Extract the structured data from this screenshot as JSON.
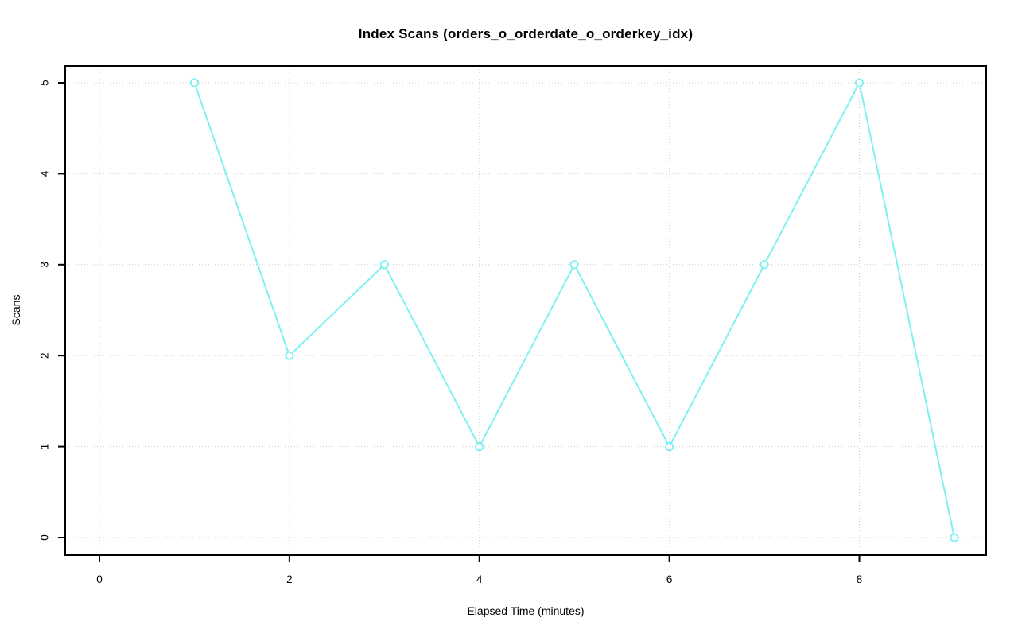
{
  "chart_data": {
    "type": "line",
    "title": "Index Scans (orders_o_orderdate_o_orderkey_idx)",
    "xlabel": "Elapsed Time (minutes)",
    "ylabel": "Scans",
    "series": [
      {
        "name": "Index Scans",
        "x": [
          1,
          2,
          3,
          4,
          5,
          6,
          7,
          8,
          9
        ],
        "y": [
          5,
          2,
          3,
          1,
          3,
          1,
          3,
          5,
          0
        ]
      }
    ],
    "xticks": [
      0,
      2,
      4,
      6,
      8
    ],
    "yticks": [
      0,
      1,
      2,
      3,
      4,
      5
    ],
    "xlim": [
      0,
      9
    ],
    "ylim": [
      0,
      5
    ],
    "grid": true,
    "grid_style": "dotted",
    "marker": "open-circle",
    "legend": null,
    "colors": {
      "line": "#7df1f1",
      "marker_fill": "#ffffff",
      "grid": "#cccccc",
      "axis": "#000000",
      "background": "#ffffff"
    }
  }
}
